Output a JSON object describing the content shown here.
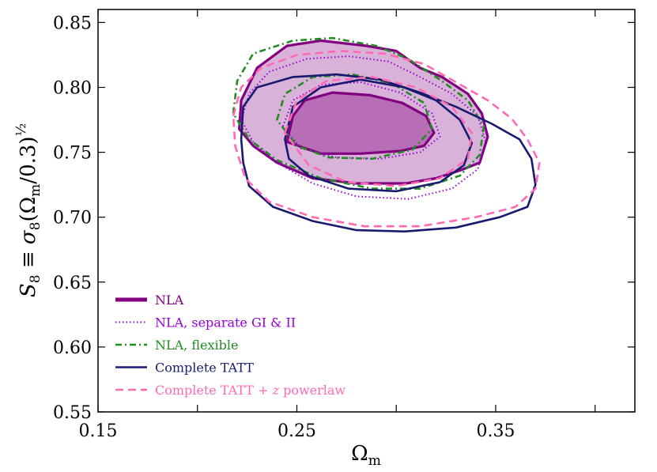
{
  "chart_data": {
    "type": "contour",
    "title": "",
    "xlabel": "Ω_m",
    "ylabel": "S_8 ≡ σ_8 (Ω_m/0.3)^(1/2)",
    "xlim": [
      0.15,
      0.42
    ],
    "ylim": [
      0.55,
      0.86
    ],
    "x_ticks": [
      0.15,
      0.25,
      0.35
    ],
    "x_tick_labels": [
      "0.15",
      "0.25",
      "0.35"
    ],
    "y_ticks": [
      0.55,
      0.6,
      0.65,
      0.7,
      0.75,
      0.8,
      0.85
    ],
    "y_tick_labels": [
      "0.55",
      "0.60",
      "0.65",
      "0.70",
      "0.75",
      "0.80",
      "0.85"
    ],
    "legend_position": "lower-left",
    "series": [
      {
        "name": "NLA",
        "color": "#800080",
        "style": "solid-thick",
        "filled": true,
        "contours": [
          [
            [
              0.221,
              0.768
            ],
            [
              0.222,
              0.79
            ],
            [
              0.23,
              0.815
            ],
            [
              0.245,
              0.832
            ],
            [
              0.262,
              0.836
            ],
            [
              0.285,
              0.832
            ],
            [
              0.3,
              0.828
            ],
            [
              0.312,
              0.815
            ],
            [
              0.323,
              0.808
            ],
            [
              0.336,
              0.795
            ],
            [
              0.343,
              0.78
            ],
            [
              0.346,
              0.762
            ],
            [
              0.342,
              0.742
            ],
            [
              0.332,
              0.736
            ],
            [
              0.32,
              0.73
            ],
            [
              0.305,
              0.726
            ],
            [
              0.28,
              0.726
            ],
            [
              0.258,
              0.73
            ],
            [
              0.24,
              0.742
            ],
            [
              0.228,
              0.755
            ]
          ],
          [
            [
              0.245,
              0.758
            ],
            [
              0.248,
              0.778
            ],
            [
              0.254,
              0.79
            ],
            [
              0.268,
              0.796
            ],
            [
              0.287,
              0.794
            ],
            [
              0.303,
              0.788
            ],
            [
              0.315,
              0.778
            ],
            [
              0.319,
              0.765
            ],
            [
              0.314,
              0.755
            ],
            [
              0.302,
              0.751
            ],
            [
              0.282,
              0.749
            ],
            [
              0.262,
              0.749
            ]
          ]
        ]
      },
      {
        "name": "NLA, separate GI & II",
        "color": "#9400D3",
        "style": "dotted",
        "filled": false,
        "contours": [
          [
            [
              0.222,
              0.775
            ],
            [
              0.226,
              0.795
            ],
            [
              0.236,
              0.812
            ],
            [
              0.255,
              0.822
            ],
            [
              0.276,
              0.824
            ],
            [
              0.296,
              0.82
            ],
            [
              0.312,
              0.808
            ],
            [
              0.328,
              0.795
            ],
            [
              0.341,
              0.778
            ],
            [
              0.345,
              0.758
            ],
            [
              0.341,
              0.737
            ],
            [
              0.328,
              0.722
            ],
            [
              0.306,
              0.714
            ],
            [
              0.28,
              0.716
            ],
            [
              0.258,
              0.726
            ],
            [
              0.24,
              0.742
            ],
            [
              0.228,
              0.758
            ]
          ],
          [
            [
              0.243,
              0.77
            ],
            [
              0.248,
              0.79
            ],
            [
              0.262,
              0.802
            ],
            [
              0.282,
              0.804
            ],
            [
              0.302,
              0.796
            ],
            [
              0.318,
              0.78
            ],
            [
              0.322,
              0.762
            ],
            [
              0.312,
              0.75
            ],
            [
              0.292,
              0.745
            ],
            [
              0.27,
              0.746
            ],
            [
              0.252,
              0.753
            ]
          ]
        ]
      },
      {
        "name": "NLA, flexible",
        "color": "#228B22",
        "style": "dashdot",
        "filled": false,
        "contours": [
          [
            [
              0.218,
              0.78
            ],
            [
              0.22,
              0.805
            ],
            [
              0.228,
              0.826
            ],
            [
              0.248,
              0.836
            ],
            [
              0.268,
              0.838
            ],
            [
              0.29,
              0.832
            ],
            [
              0.306,
              0.822
            ],
            [
              0.322,
              0.806
            ],
            [
              0.336,
              0.79
            ],
            [
              0.344,
              0.77
            ],
            [
              0.342,
              0.748
            ],
            [
              0.332,
              0.732
            ],
            [
              0.312,
              0.722
            ],
            [
              0.288,
              0.722
            ],
            [
              0.262,
              0.73
            ],
            [
              0.24,
              0.744
            ],
            [
              0.226,
              0.76
            ]
          ],
          [
            [
              0.24,
              0.775
            ],
            [
              0.244,
              0.795
            ],
            [
              0.258,
              0.808
            ],
            [
              0.278,
              0.81
            ],
            [
              0.298,
              0.803
            ],
            [
              0.314,
              0.788
            ],
            [
              0.318,
              0.768
            ],
            [
              0.308,
              0.752
            ],
            [
              0.288,
              0.745
            ],
            [
              0.266,
              0.746
            ],
            [
              0.25,
              0.755
            ]
          ]
        ]
      },
      {
        "name": "Complete TATT",
        "color": "#191970",
        "style": "solid",
        "filled": false,
        "contours": [
          [
            [
              0.222,
              0.76
            ],
            [
              0.223,
              0.785
            ],
            [
              0.23,
              0.8
            ],
            [
              0.248,
              0.808
            ],
            [
              0.27,
              0.81
            ],
            [
              0.292,
              0.806
            ],
            [
              0.312,
              0.796
            ],
            [
              0.33,
              0.785
            ],
            [
              0.348,
              0.772
            ],
            [
              0.362,
              0.76
            ],
            [
              0.368,
              0.745
            ],
            [
              0.37,
              0.725
            ],
            [
              0.366,
              0.708
            ],
            [
              0.352,
              0.7
            ],
            [
              0.33,
              0.692
            ],
            [
              0.304,
              0.689
            ],
            [
              0.28,
              0.69
            ],
            [
              0.258,
              0.697
            ],
            [
              0.238,
              0.708
            ],
            [
              0.226,
              0.724
            ],
            [
              0.223,
              0.742
            ]
          ],
          [
            [
              0.244,
              0.76
            ],
            [
              0.248,
              0.785
            ],
            [
              0.262,
              0.8
            ],
            [
              0.282,
              0.806
            ],
            [
              0.304,
              0.8
            ],
            [
              0.32,
              0.79
            ],
            [
              0.332,
              0.775
            ],
            [
              0.338,
              0.757
            ],
            [
              0.334,
              0.74
            ],
            [
              0.322,
              0.727
            ],
            [
              0.3,
              0.72
            ],
            [
              0.276,
              0.722
            ],
            [
              0.256,
              0.732
            ],
            [
              0.246,
              0.745
            ]
          ]
        ]
      },
      {
        "name": "Complete TATT + z powerlaw",
        "color": "#FF69B4",
        "style": "dashed",
        "filled": false,
        "contours": [
          [
            [
              0.218,
              0.778
            ],
            [
              0.222,
              0.8
            ],
            [
              0.232,
              0.815
            ],
            [
              0.25,
              0.825
            ],
            [
              0.272,
              0.828
            ],
            [
              0.294,
              0.826
            ],
            [
              0.314,
              0.818
            ],
            [
              0.33,
              0.804
            ],
            [
              0.346,
              0.79
            ],
            [
              0.358,
              0.776
            ],
            [
              0.366,
              0.76
            ],
            [
              0.372,
              0.742
            ],
            [
              0.37,
              0.722
            ],
            [
              0.36,
              0.708
            ],
            [
              0.34,
              0.7
            ],
            [
              0.312,
              0.693
            ],
            [
              0.284,
              0.693
            ],
            [
              0.258,
              0.7
            ],
            [
              0.236,
              0.712
            ],
            [
              0.224,
              0.73
            ],
            [
              0.219,
              0.755
            ]
          ],
          [
            [
              0.244,
              0.765
            ],
            [
              0.25,
              0.79
            ],
            [
              0.265,
              0.805
            ],
            [
              0.288,
              0.808
            ],
            [
              0.31,
              0.8
            ],
            [
              0.328,
              0.785
            ],
            [
              0.338,
              0.765
            ],
            [
              0.336,
              0.745
            ],
            [
              0.322,
              0.73
            ],
            [
              0.3,
              0.724
            ],
            [
              0.275,
              0.727
            ],
            [
              0.256,
              0.74
            ]
          ]
        ]
      }
    ]
  }
}
